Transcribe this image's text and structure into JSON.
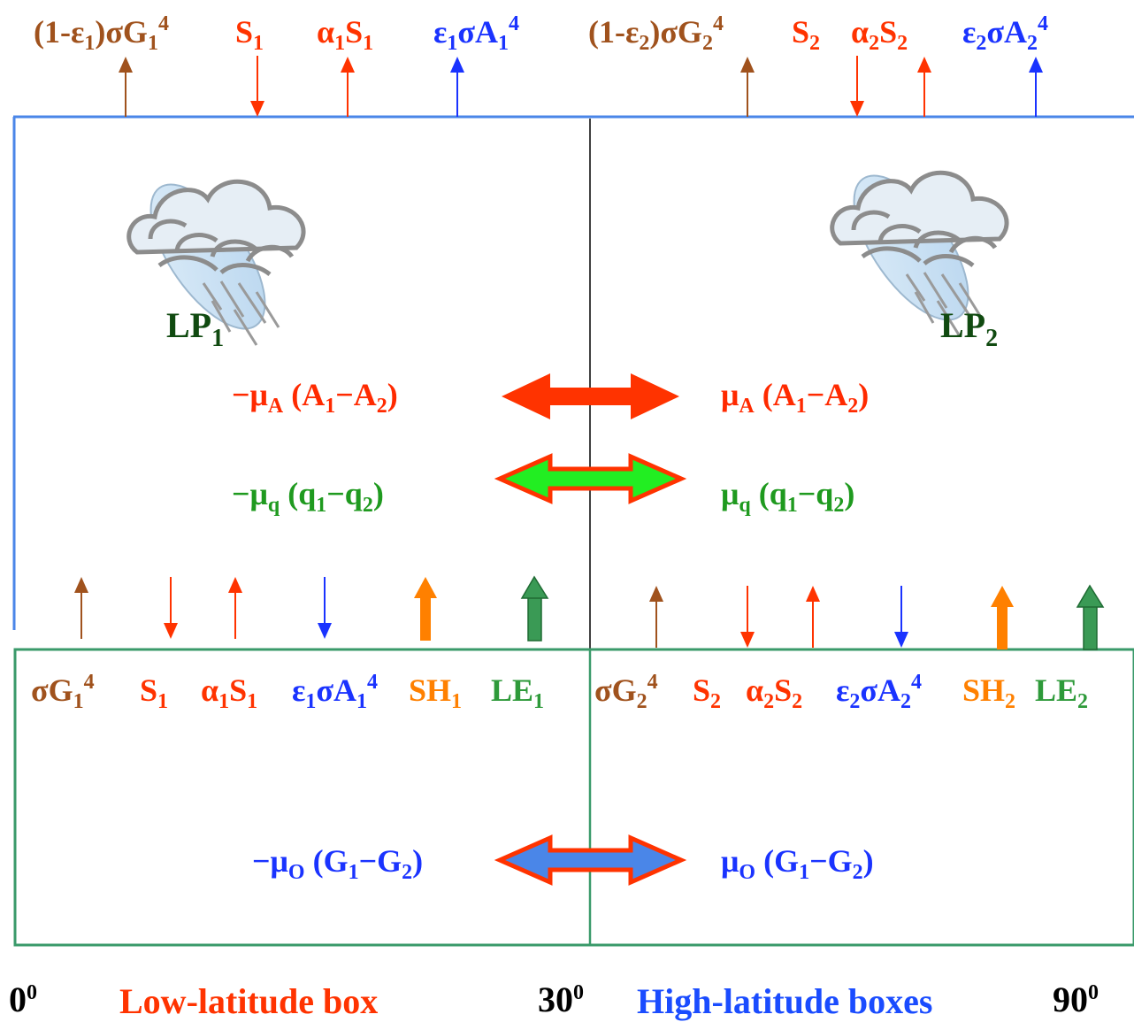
{
  "top_labels": {
    "low": [
      "(1-ε1)σG14",
      "S1",
      "α1S1",
      "ε1σA14"
    ],
    "high": [
      "(1-ε2)σG24",
      "S2",
      "α2S2",
      "ε2σA24"
    ]
  },
  "surface_labels": {
    "low": [
      "σG14",
      "S1",
      "α1S1",
      "ε1σA14",
      "SH1",
      "LE1"
    ],
    "high": [
      "σG24",
      "S2",
      "α2S2",
      "ε2σA24",
      "SH2",
      "LE2"
    ]
  },
  "lp": {
    "low": "LP1",
    "high": "LP2"
  },
  "exchange": {
    "atmos_left": "−μA (A1−A2)",
    "atmos_right": "μA (A1−A2)",
    "moist_left": "−μq (q1−q2)",
    "moist_right": "μq (q1−q2)",
    "ocean_left": "−μO (G1−G2)",
    "ocean_right": "μO (G1−G2)"
  },
  "bottom": {
    "lat_0": "00",
    "low_box": "Low-latitude box",
    "lat_30": "300",
    "high_box": "High-latitude boxes",
    "lat_90": "900"
  },
  "colors": {
    "longwave": "#a0521d",
    "shortwave": "#ff3300",
    "atmos_emission": "#1a33ff",
    "sensible_heat": "#ff8000",
    "latent_heat": "#2e9a3a",
    "atmos_border": "#4a86e8",
    "ocean_border": "#3a9a6a"
  },
  "icons": [
    "rain-cloud-icon"
  ]
}
